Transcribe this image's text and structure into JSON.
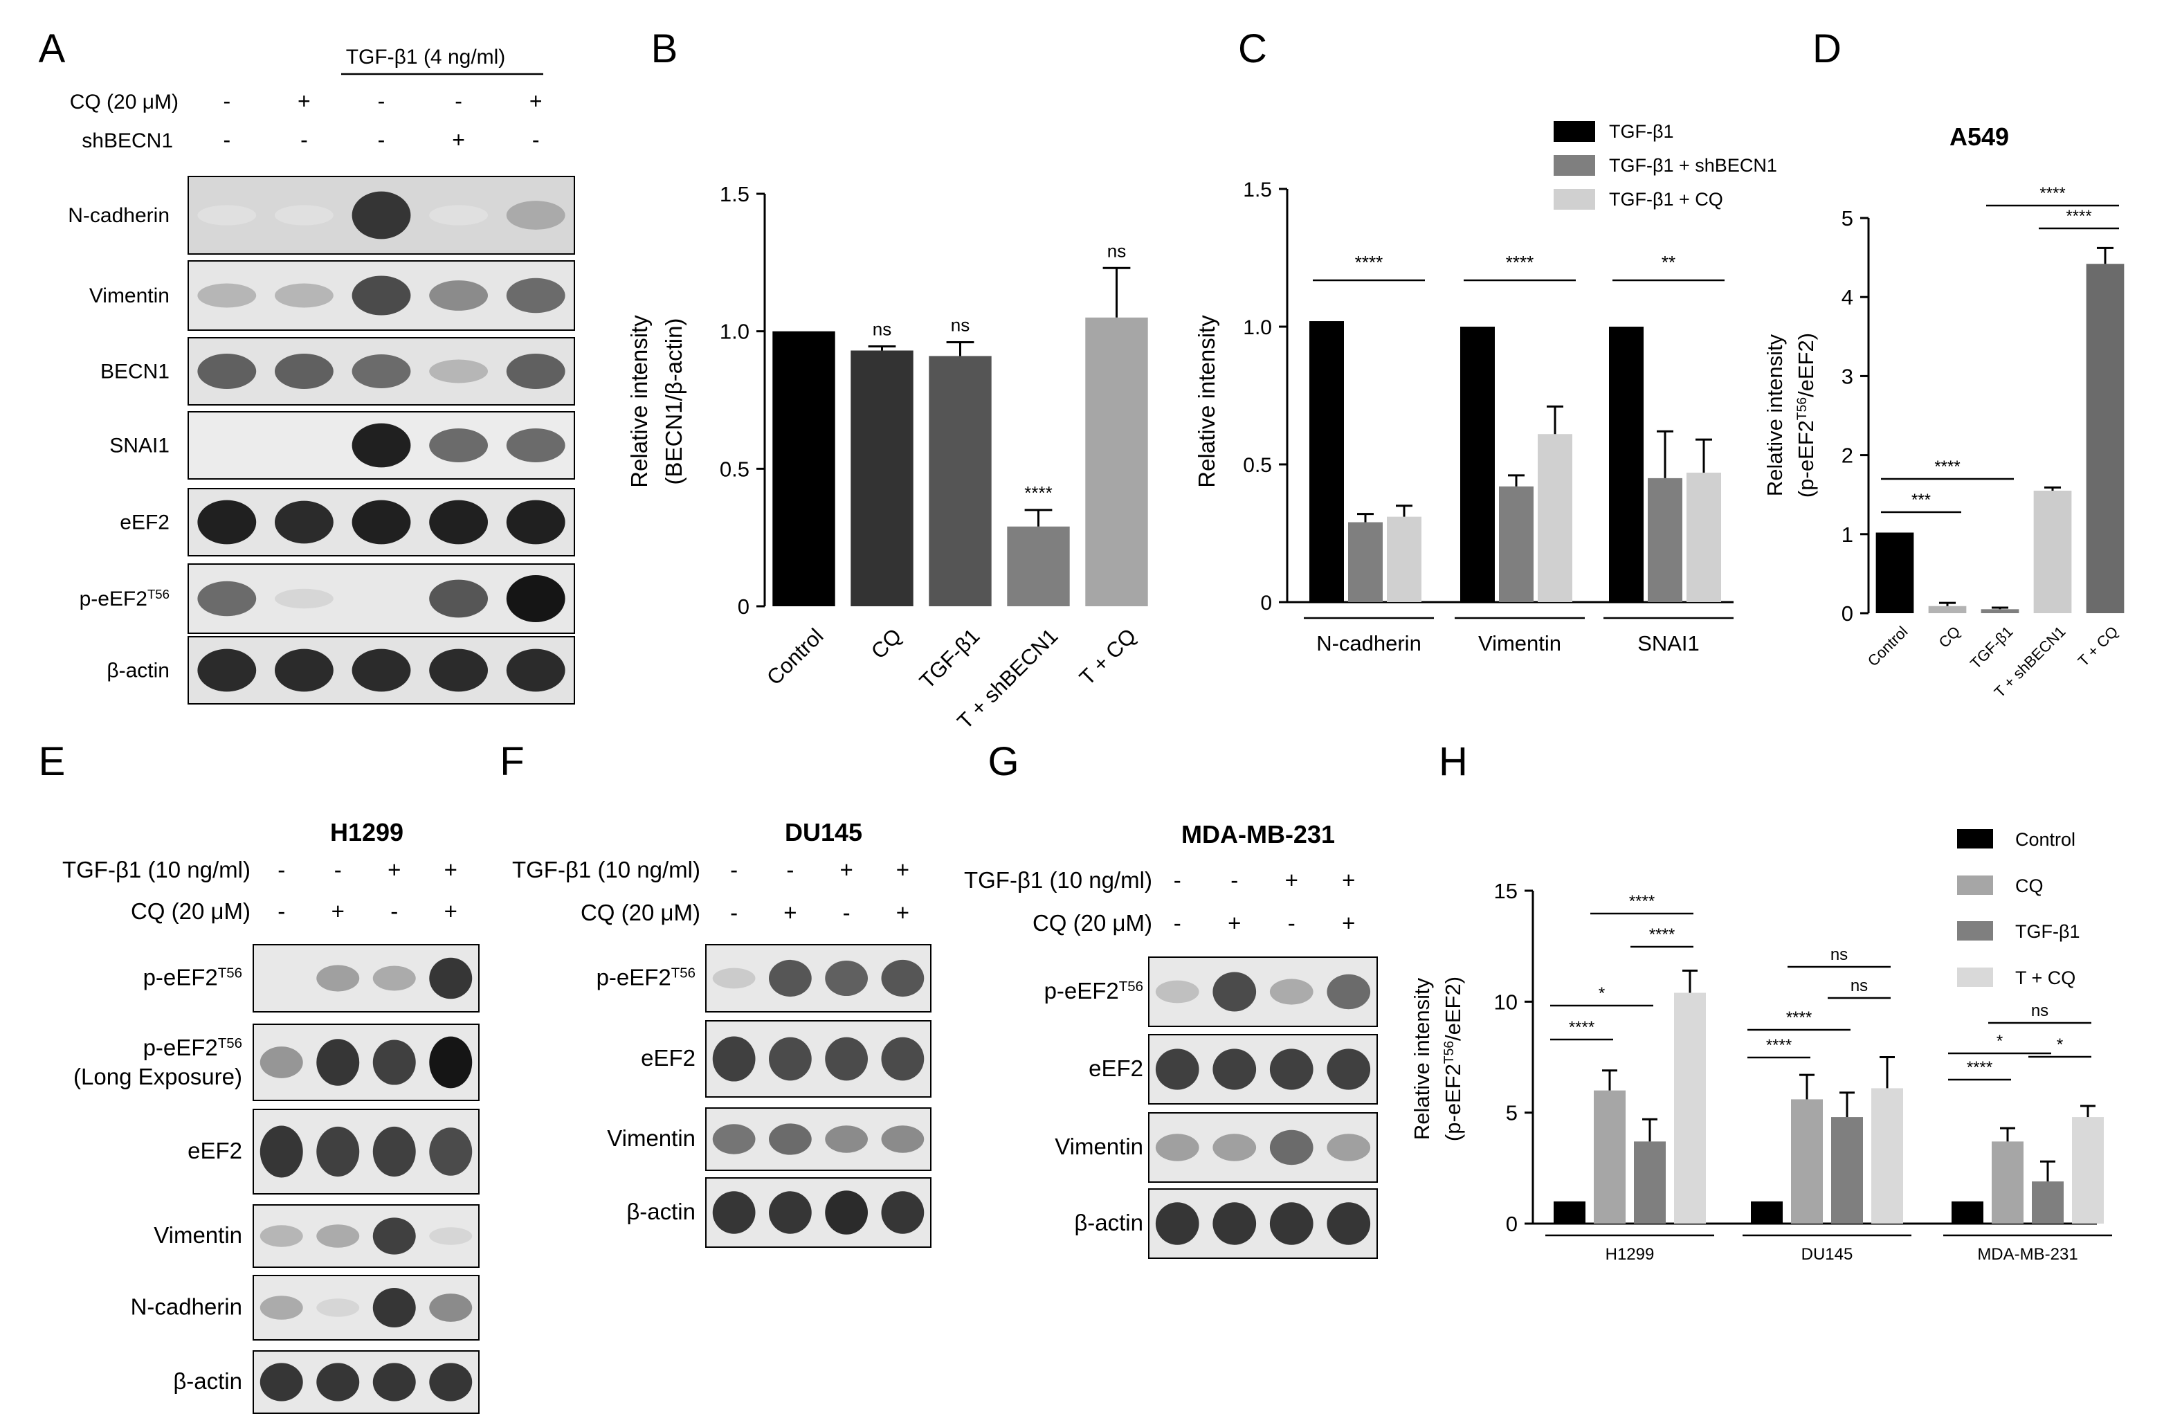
{
  "panel_letters": [
    "A",
    "B",
    "C",
    "D",
    "E",
    "F",
    "G",
    "H"
  ],
  "blotA": {
    "treatment_label": "TGF-β1 (4 ng/ml)",
    "cq_label": "CQ (20 μM)",
    "cq_signs": [
      "-",
      "+",
      "-",
      "-",
      "+"
    ],
    "sh_label": "shBECN1",
    "sh_signs": [
      "-",
      "-",
      "-",
      "+",
      "-"
    ],
    "rows": [
      {
        "name": "N-cadherin",
        "bands": [
          0.05,
          0.05,
          0.85,
          0.05,
          0.3
        ],
        "bg": "#d7d7d7"
      },
      {
        "name": "Vimentin",
        "bands": [
          0.25,
          0.25,
          0.75,
          0.45,
          0.6
        ],
        "bg": "#e6e6e6"
      },
      {
        "name": "BECN1",
        "bands": [
          0.65,
          0.65,
          0.6,
          0.25,
          0.65
        ],
        "bg": "#e3e3e3"
      },
      {
        "name": "SNAI1",
        "bands": [
          0,
          0,
          0.95,
          0.6,
          0.6
        ],
        "bg": "#ececec"
      },
      {
        "name": "eEF2",
        "bands": [
          0.95,
          0.9,
          0.95,
          0.95,
          0.95
        ],
        "bg": "#e5e5e5"
      },
      {
        "name": "p-eEF2",
        "sup": "T56",
        "bands": [
          0.6,
          0.1,
          0,
          0.7,
          1
        ],
        "bg": "#e8e8e8"
      },
      {
        "name": "β-actin",
        "bands": [
          0.9,
          0.9,
          0.9,
          0.9,
          0.9
        ],
        "bg": "#e3e3e3"
      }
    ]
  },
  "blotE": {
    "title": "H1299",
    "tgf_label": "TGF-β1 (10 ng/ml)",
    "tgf_signs": [
      "-",
      "-",
      "+",
      "+"
    ],
    "cq_label": "CQ (20 μM)",
    "cq_signs": [
      "-",
      "+",
      "-",
      "+"
    ],
    "rows": [
      {
        "name": "p-eEF2",
        "sup": "T56",
        "bands": [
          0,
          0.35,
          0.3,
          0.85
        ]
      },
      {
        "name": "p-eEF2",
        "sup": "T56",
        "name2": "(Long Exposure)",
        "bands": [
          0.4,
          0.85,
          0.8,
          1
        ]
      },
      {
        "name": "eEF2",
        "bands": [
          0.85,
          0.8,
          0.8,
          0.75
        ]
      },
      {
        "name": "Vimentin",
        "bands": [
          0.25,
          0.3,
          0.8,
          0.1
        ]
      },
      {
        "name": "N-cadherin",
        "bands": [
          0.3,
          0.1,
          0.85,
          0.45
        ]
      },
      {
        "name": "β-actin",
        "bands": [
          0.85,
          0.85,
          0.85,
          0.85
        ]
      }
    ]
  },
  "blotF": {
    "title": "DU145",
    "tgf_label": "TGF-β1 (10 ng/ml)",
    "tgf_signs": [
      "-",
      "-",
      "+",
      "+"
    ],
    "cq_label": "CQ (20 μM)",
    "cq_signs": [
      "-",
      "+",
      "-",
      "+"
    ],
    "rows": [
      {
        "name": "p-eEF2",
        "sup": "T56",
        "bands": [
          0.15,
          0.7,
          0.65,
          0.7
        ]
      },
      {
        "name": "eEF2",
        "bands": [
          0.8,
          0.75,
          0.75,
          0.75
        ]
      },
      {
        "name": "Vimentin",
        "bands": [
          0.55,
          0.6,
          0.45,
          0.45
        ]
      },
      {
        "name": "β-actin",
        "bands": [
          0.85,
          0.85,
          0.9,
          0.85
        ]
      }
    ]
  },
  "blotG": {
    "title": "MDA-MB-231",
    "tgf_label": "TGF-β1 (10 ng/ml)",
    "tgf_signs": [
      "-",
      "-",
      "+",
      "+"
    ],
    "cq_label": "CQ (20 μM)",
    "cq_signs": [
      "-",
      "+",
      "-",
      "+"
    ],
    "rows": [
      {
        "name": "p-eEF2",
        "sup": "T56",
        "bands": [
          0.2,
          0.75,
          0.3,
          0.6
        ]
      },
      {
        "name": "eEF2",
        "bands": [
          0.8,
          0.8,
          0.8,
          0.8
        ]
      },
      {
        "name": "Vimentin",
        "bands": [
          0.35,
          0.35,
          0.6,
          0.35
        ]
      },
      {
        "name": "β-actin",
        "bands": [
          0.85,
          0.85,
          0.85,
          0.85
        ]
      }
    ]
  },
  "chart_data": [
    {
      "panel": "B",
      "type": "bar",
      "title": "",
      "ylabel": "Relative intensity",
      "ylabel2": "(BECN1/β-actin)",
      "ylim": [
        0,
        1.5
      ],
      "yticks": [
        0,
        0.5,
        1.0,
        1.5
      ],
      "ytick_labels": [
        "0",
        "0.5",
        "1.0",
        "1.5"
      ],
      "categories": [
        "Control",
        "CQ",
        "TGF-β1",
        "T + shBECN1",
        "T + CQ"
      ],
      "values": [
        1.0,
        0.93,
        0.91,
        0.29,
        1.05
      ],
      "errors": [
        0,
        0.015,
        0.05,
        0.06,
        0.18
      ],
      "significance": [
        "",
        "ns",
        "ns",
        "****",
        "ns"
      ],
      "colors": [
        "#000000",
        "#333333",
        "#555555",
        "#7f7f7f",
        "#a6a6a6"
      ]
    },
    {
      "panel": "C",
      "type": "bar",
      "ylabel": "Relative intensity",
      "ylim": [
        0,
        1.5
      ],
      "yticks": [
        0,
        0.5,
        1.0,
        1.5
      ],
      "ytick_labels": [
        "0",
        "0.5",
        "1.0",
        "1.5"
      ],
      "categories": [
        "N-cadherin",
        "Vimentin",
        "SNAI1"
      ],
      "series": [
        {
          "name": "TGF-β1",
          "values": [
            1.02,
            1.0,
            1.0
          ],
          "errors": [
            0,
            0,
            0
          ],
          "color": "#000000"
        },
        {
          "name": "TGF-β1 + shBECN1",
          "values": [
            0.29,
            0.42,
            0.45
          ],
          "errors": [
            0.03,
            0.04,
            0.17
          ],
          "color": "#7f7f7f"
        },
        {
          "name": "TGF-β1 + CQ",
          "values": [
            0.31,
            0.61,
            0.47
          ],
          "errors": [
            0.04,
            0.1,
            0.12
          ],
          "color": "#d0d0d0"
        }
      ],
      "significance": [
        "****",
        "****",
        "**"
      ],
      "legend_position": "top-right"
    },
    {
      "panel": "D",
      "type": "bar",
      "title": "A549",
      "ylabel": "Relative intensity",
      "ylabel_sub": "(p-eEF2",
      "ylabel_sup": "T56",
      "ylabel_end": "/eEF2)",
      "ylim": [
        0,
        5
      ],
      "yticks": [
        0,
        1,
        2,
        3,
        4,
        5
      ],
      "ytick_labels": [
        "0",
        "1",
        "2",
        "3",
        "4",
        "5"
      ],
      "categories": [
        "Control",
        "CQ",
        "TGF-β1",
        "T + shBECN1",
        "T + CQ"
      ],
      "values": [
        1.02,
        0.09,
        0.05,
        1.55,
        4.42
      ],
      "errors": [
        0,
        0.04,
        0.02,
        0.04,
        0.2
      ],
      "colors": [
        "#000000",
        "#b3b3b3",
        "#7f7f7f",
        "#cccccc",
        "#6b6b6b"
      ],
      "brackets": [
        {
          "from": 0,
          "to": 1,
          "label": "***"
        },
        {
          "from": 0,
          "to": 2,
          "label": "****"
        },
        {
          "from": 2,
          "to": 4,
          "label": "****"
        },
        {
          "from": 3,
          "to": 4,
          "label": "****"
        }
      ]
    },
    {
      "panel": "H",
      "type": "bar",
      "ylabel": "Relative intensity",
      "ylabel_sub": "(p-eEF2",
      "ylabel_sup": "T56",
      "ylabel_end": "/eEF2)",
      "ylim": [
        0,
        15
      ],
      "yticks": [
        0,
        5,
        10,
        15
      ],
      "ytick_labels": [
        "0",
        "5",
        "10",
        "15"
      ],
      "categories": [
        "H1299",
        "DU145",
        "MDA-MB-231"
      ],
      "series": [
        {
          "name": "Control",
          "values": [
            1,
            1,
            1
          ],
          "errors": [
            0,
            0,
            0
          ],
          "color": "#000000"
        },
        {
          "name": "CQ",
          "values": [
            6.0,
            5.6,
            3.7
          ],
          "errors": [
            0.9,
            1.1,
            0.6
          ],
          "color": "#a6a6a6"
        },
        {
          "name": "TGF-β1",
          "values": [
            3.7,
            4.8,
            1.9
          ],
          "errors": [
            1.0,
            1.1,
            0.9
          ],
          "color": "#7f7f7f"
        },
        {
          "name": "T + CQ",
          "values": [
            10.4,
            6.1,
            4.8
          ],
          "errors": [
            1.0,
            1.4,
            0.5
          ],
          "color": "#d9d9d9"
        }
      ],
      "brackets": [
        {
          "group": 0,
          "from": 0,
          "to": 1,
          "label": "****"
        },
        {
          "group": 0,
          "from": 0,
          "to": 2,
          "label": "*"
        },
        {
          "group": 0,
          "from": 1,
          "to": 3,
          "label": "****"
        },
        {
          "group": 0,
          "from": 2,
          "to": 3,
          "label": "****"
        },
        {
          "group": 1,
          "from": 0,
          "to": 1,
          "label": "****"
        },
        {
          "group": 1,
          "from": 0,
          "to": 2,
          "label": "****"
        },
        {
          "group": 1,
          "from": 1,
          "to": 3,
          "label": "ns"
        },
        {
          "group": 1,
          "from": 2,
          "to": 3,
          "label": "ns"
        },
        {
          "group": 2,
          "from": 0,
          "to": 1,
          "label": "****"
        },
        {
          "group": 2,
          "from": 0,
          "to": 2,
          "label": "*"
        },
        {
          "group": 2,
          "from": 1,
          "to": 3,
          "label": "ns"
        },
        {
          "group": 2,
          "from": 2,
          "to": 3,
          "label": "*"
        }
      ],
      "legend_position": "top-right"
    }
  ]
}
